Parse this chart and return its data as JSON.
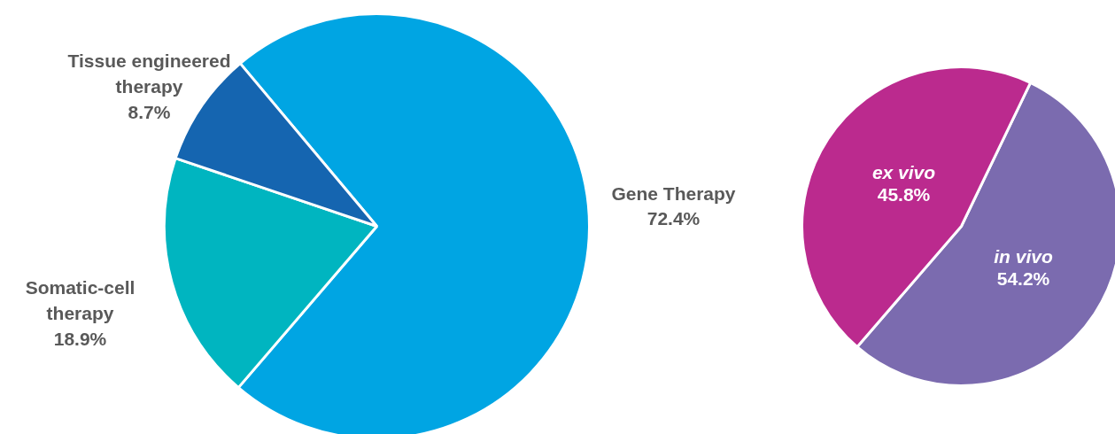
{
  "chart_data": [
    {
      "type": "pie",
      "categories": [
        "Gene Therapy",
        "Somatic-cell therapy",
        "Tissue engineered therapy"
      ],
      "values": [
        72.4,
        18.9,
        8.7
      ],
      "colors": [
        "#00a5e3",
        "#00b5c0",
        "#1565b0"
      ],
      "value_labels": [
        "72.4%",
        "18.9%",
        "8.7%"
      ]
    },
    {
      "type": "pie",
      "categories": [
        "in vivo",
        "ex vivo"
      ],
      "values": [
        54.2,
        45.8
      ],
      "colors": [
        "#7b6baf",
        "#bb2a8e"
      ],
      "value_labels": [
        "54.2%",
        "45.8%"
      ]
    }
  ]
}
